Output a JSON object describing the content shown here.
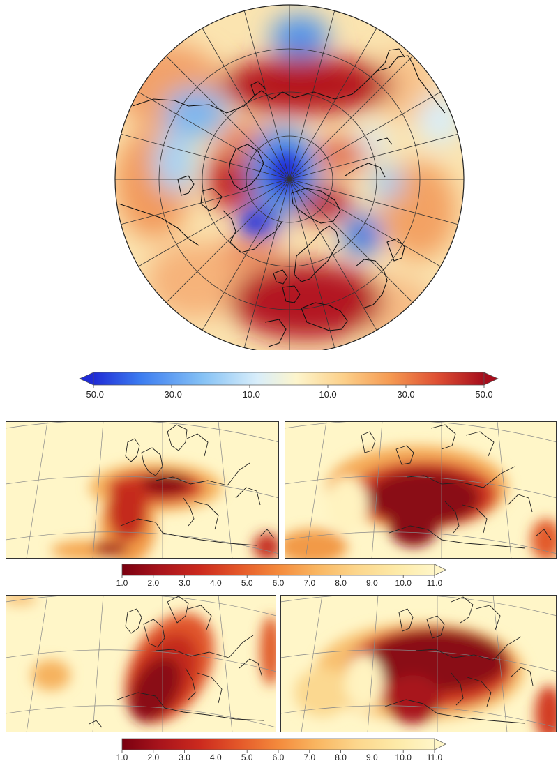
{
  "polar_map": {
    "colorbar": {
      "ticks": [
        "-50.0",
        "-30.0",
        "-10.0",
        "10.0",
        "30.0",
        "50.0"
      ],
      "colors": [
        "#1f2bd6",
        "#3c7cf0",
        "#86c2f5",
        "#d9eefa",
        "#fdf5cc",
        "#fcd08a",
        "#f59a52",
        "#de4f33",
        "#a60d1c"
      ]
    }
  },
  "regional_maps": {
    "colorbar_top": {
      "ticks": [
        "1.0",
        "2.0",
        "3.0",
        "4.0",
        "5.0",
        "6.0",
        "7.0",
        "8.0",
        "9.0",
        "10.0",
        "11.0"
      ]
    },
    "colorbar_bottom": {
      "ticks": [
        "1.0",
        "2.0",
        "3.0",
        "4.0",
        "5.0",
        "6.0",
        "7.0",
        "8.0",
        "9.0",
        "10.0",
        "11.0"
      ]
    },
    "colors": [
      "#7a0010",
      "#a8141c",
      "#cc2a1e",
      "#e55a2a",
      "#f48a3c",
      "#f9b560",
      "#fcd68c",
      "#fdeaa8",
      "#fff6c8"
    ]
  }
}
